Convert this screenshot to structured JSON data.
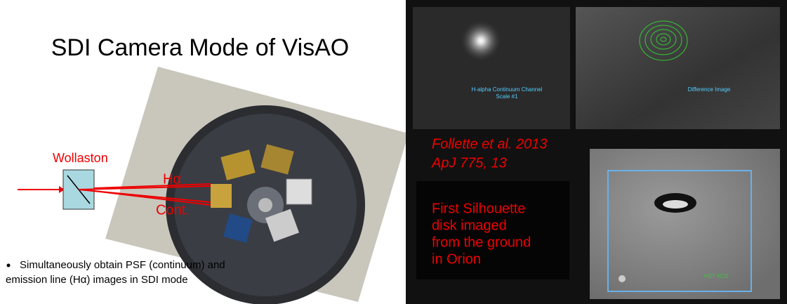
{
  "slide": {
    "title": "SDI Camera Mode of VisAO",
    "diagram": {
      "prism_label": "Wollaston",
      "halpha_label": "Hα",
      "continuum_label": "Cont."
    },
    "bullet": [
      "Simultaneously obtain PSF (continuum) and",
      "emission line (Hα) images in SDI mode"
    ],
    "panels": {
      "continuum_caption": [
        "H-alpha Continuum Channel",
        "Scale #1"
      ],
      "difference_caption": "Difference Image",
      "reference": [
        "Follette et al. 2013",
        "ApJ 775, 13"
      ],
      "highlight": [
        "First Silhouette",
        "disk imaged",
        "from the ground",
        "in Orion"
      ],
      "hst_caption": "HST ACS"
    }
  }
}
